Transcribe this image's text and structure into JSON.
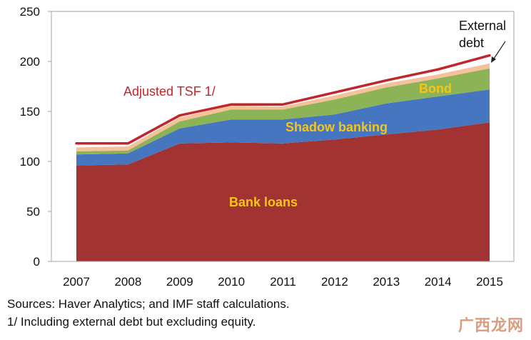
{
  "chart_data": {
    "type": "area",
    "stacked": true,
    "x": [
      "2007",
      "2008",
      "2009",
      "2010",
      "2011",
      "2012",
      "2013",
      "2014",
      "2015"
    ],
    "ylim": [
      0,
      250
    ],
    "yticks": [
      0,
      50,
      100,
      150,
      200,
      250
    ],
    "grid": false,
    "series": [
      {
        "name": "Bank loans",
        "color": "#a13433",
        "values": [
          96,
          97,
          118,
          119,
          118,
          122,
          127,
          132,
          139
        ]
      },
      {
        "name": "Shadow banking",
        "color": "#4776c0",
        "values": [
          11,
          11,
          15,
          23,
          24,
          25,
          31,
          33,
          33
        ]
      },
      {
        "name": "Bond",
        "color": "#8db357",
        "values": [
          3,
          3,
          7,
          10,
          10,
          15,
          16,
          18,
          21
        ]
      },
      {
        "name": "External debt",
        "color": "#f5c199",
        "values": [
          4,
          4,
          4,
          4,
          3,
          4,
          4,
          4,
          5
        ]
      }
    ],
    "line_series": {
      "name": "Adjusted TSF 1/",
      "color": "#c0272d",
      "values": [
        118,
        118,
        146,
        157,
        157,
        169,
        181,
        192,
        206
      ]
    },
    "annotations": {
      "bank_loans": "Bank loans",
      "shadow_banking": "Shadow banking",
      "bond": "Bond",
      "external_debt_line1": "External",
      "external_debt_line2": "debt",
      "adjusted_tsf": "Adjusted TSF 1/"
    }
  },
  "footnotes": {
    "sources": "Sources: Haver Analytics; and IMF staff calculations.",
    "note1": "1/ Including external debt but excluding equity."
  },
  "watermark": "广西龙网"
}
